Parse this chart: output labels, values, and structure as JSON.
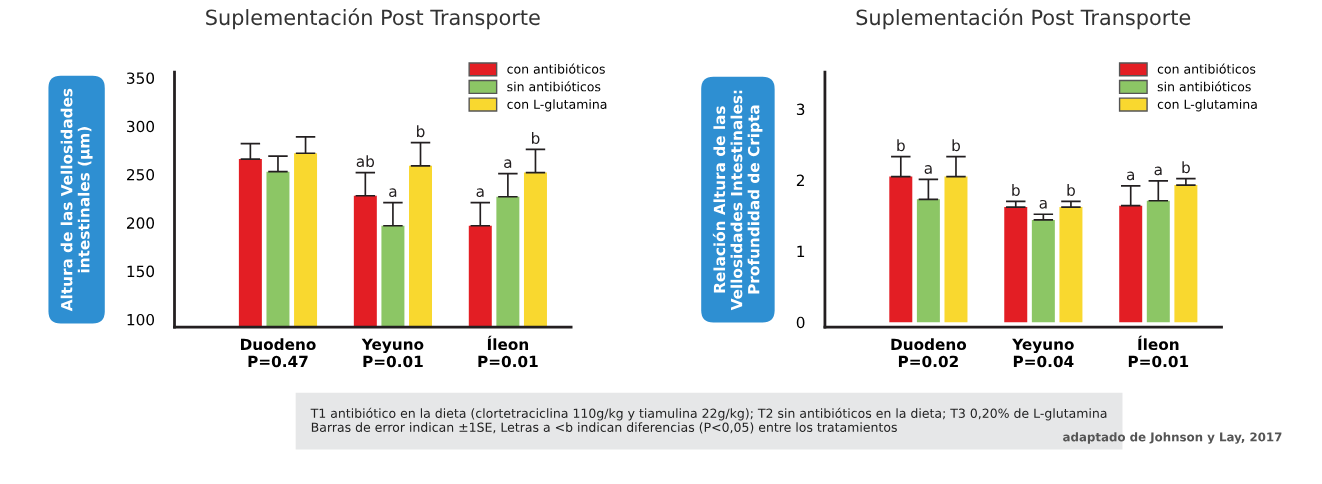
{
  "chart_data": [
    {
      "type": "bar",
      "title": "Suplementación Post Transporte",
      "ylabel": "Altura de las Vellosidades\nintestinales (µm)",
      "categories": [
        "Duodeno\nP=0.47",
        "Yeyuno\nP=0.01",
        "Íleon\nP=0.01"
      ],
      "series": [
        {
          "name": "con antibióticos",
          "color": "#e31e24",
          "values": [
            266,
            228,
            197
          ],
          "errors": [
            16,
            24,
            24
          ],
          "value_labels": [
            null,
            "ab",
            "a"
          ]
        },
        {
          "name": "sin antibióticos",
          "color": "#8cc665",
          "values": [
            253,
            197,
            227
          ],
          "errors": [
            16,
            24,
            24
          ],
          "value_labels": [
            null,
            "a",
            "a"
          ]
        },
        {
          "name": "con L-glutamina",
          "color": "#f9d82f",
          "values": [
            272,
            259,
            252
          ],
          "errors": [
            17,
            24,
            24
          ],
          "value_labels": [
            null,
            "b",
            "b"
          ]
        }
      ],
      "ylim": [
        92,
        356
      ],
      "yticks": [
        100,
        150,
        200,
        250,
        300,
        350
      ],
      "grid": false,
      "legend": "top right",
      "annotations": [
        "T1 antibiótico en la dieta (clortetraciclina 110g/kg y tiamulina 22g/kg); T2 sin antibióticos en la dieta; T3 0,20% de L-glutamina\nBarras de error indican ±1SE, Letras a <b indican diferencias (P<0,05) entre los tratamientos",
        "adaptado de Johnson y Lay, 2017"
      ]
    },
    {
      "type": "bar",
      "title": "Suplementación Post Transporte",
      "ylabel": "Relación Altura de las\nVellosidades Intestinales:\nProfundidad de Cripta",
      "categories": [
        "Duodeno\nP=0.02",
        "Yeyuno\nP=0.04",
        "Íleon\nP=0.01"
      ],
      "series": [
        {
          "name": "con antibióticos",
          "color": "#e31e24",
          "values": [
            2.05,
            1.62,
            1.64
          ],
          "errors": [
            0.28,
            0.08,
            0.28
          ],
          "value_labels": [
            "b",
            "b",
            "a"
          ]
        },
        {
          "name": "sin antibióticos",
          "color": "#8cc665",
          "values": [
            1.73,
            1.44,
            1.71
          ],
          "errors": [
            0.28,
            0.08,
            0.28
          ],
          "value_labels": [
            "a",
            "a",
            "a"
          ]
        },
        {
          "name": "con L-glutamina",
          "color": "#f9d82f",
          "values": [
            2.05,
            1.62,
            1.93
          ],
          "errors": [
            0.28,
            0.08,
            0.09
          ],
          "value_labels": [
            "b",
            "b",
            "b"
          ]
        }
      ],
      "ylim": [
        -0.07,
        3.52
      ],
      "yticks": [
        0,
        1,
        2,
        3
      ],
      "grid": false,
      "legend": "top right"
    }
  ]
}
